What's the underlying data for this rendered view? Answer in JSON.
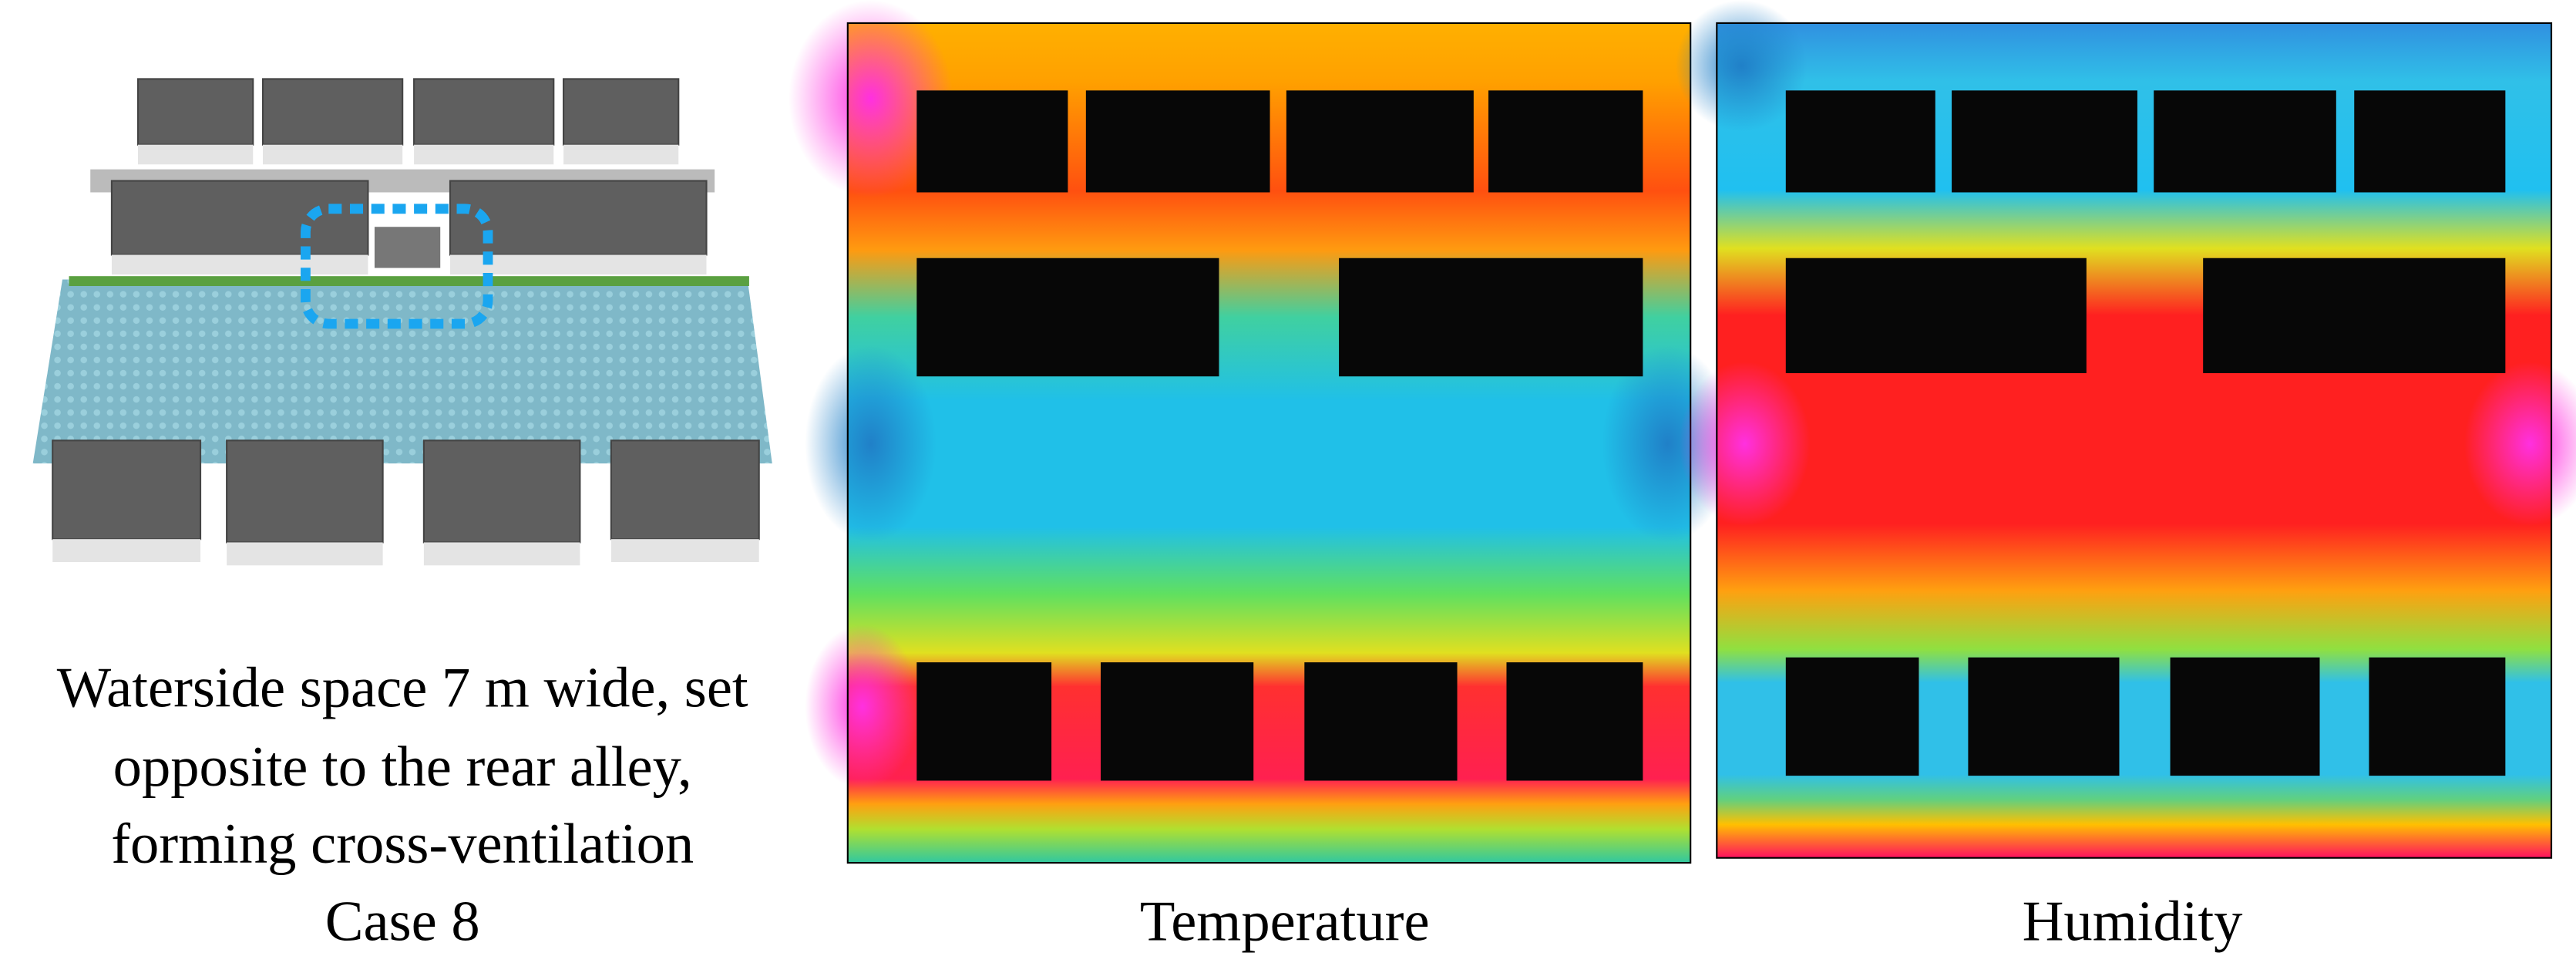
{
  "scene": {
    "caption": [
      "Waterside space 7 m wide, set",
      "opposite to the rear alley,",
      "forming cross-ventilation"
    ],
    "case": "Case 8"
  },
  "panels": [
    {
      "label": "Temperature"
    },
    {
      "label": "Humidity"
    }
  ]
}
